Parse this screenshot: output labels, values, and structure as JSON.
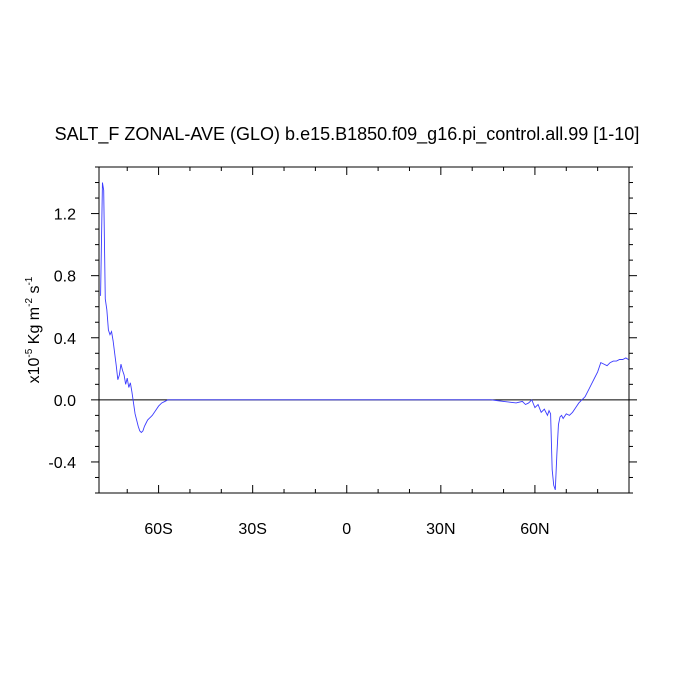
{
  "chart_data": {
    "type": "line",
    "title": "SALT_F ZONAL-AVE (GLO) b.e15.B1850.f09_g16.pi_control.all.99 [1-10]",
    "ylabel": {
      "prefix": "x10",
      "exp": "-5",
      "unit1": " Kg m",
      "exp2": "-2",
      "unit2": " s",
      "exp3": "-1"
    },
    "xlabel": "",
    "xlim": [
      -79,
      90
    ],
    "ylim": [
      -0.6,
      1.5
    ],
    "x_ticks": [
      {
        "value": -60,
        "label": "60S"
      },
      {
        "value": -30,
        "label": "30S"
      },
      {
        "value": 0,
        "label": "0"
      },
      {
        "value": 30,
        "label": "30N"
      },
      {
        "value": 60,
        "label": "60N"
      }
    ],
    "y_ticks": [
      {
        "value": 1.2,
        "label": "1.2"
      },
      {
        "value": 0.8,
        "label": "0.8"
      },
      {
        "value": 0.4,
        "label": "0.4"
      },
      {
        "value": 0.0,
        "label": "0.0"
      },
      {
        "value": -0.4,
        "label": "-0.4"
      }
    ],
    "zero_line": true,
    "series": [
      {
        "color": "#3b3bff",
        "x": [
          -78.5,
          -77.9,
          -77.5,
          -77.0,
          -76.5,
          -76.0,
          -75.5,
          -75.0,
          -74.5,
          -74.0,
          -73.5,
          -73.0,
          -72.5,
          -72.0,
          -71.5,
          -71.0,
          -70.5,
          -70.0,
          -69.5,
          -69.0,
          -68.5,
          -68.0,
          -67.5,
          -67.0,
          -66.5,
          -66.0,
          -65.5,
          -65.0,
          -64.5,
          -64.0,
          -63.5,
          -63.0,
          -62.5,
          -62.0,
          -61.0,
          -60.0,
          -59.0,
          -58.0,
          -57.0,
          -56.0,
          -55.0,
          -54.0,
          -52.0,
          -50.0,
          -45.0,
          -30.0,
          0.0,
          30.0,
          40.0,
          44.0,
          46.0,
          48.0,
          50.0,
          52.0,
          54.0,
          56.0,
          57.0,
          58.0,
          59.0,
          60.0,
          61.0,
          62.0,
          63.0,
          64.0,
          64.5,
          65.0,
          65.5,
          66.0,
          66.5,
          67.0,
          67.5,
          68.0,
          68.5,
          69.0,
          70.0,
          71.0,
          72.0,
          73.0,
          74.0,
          75.0,
          76.0,
          77.0,
          78.0,
          79.0,
          80.0,
          81.0,
          82.0,
          83.0,
          84.0,
          85.0,
          86.0,
          87.0,
          88.0,
          89.0,
          89.8
        ],
        "y": [
          0.67,
          1.4,
          1.35,
          0.65,
          0.58,
          0.45,
          0.42,
          0.44,
          0.38,
          0.3,
          0.22,
          0.13,
          0.16,
          0.23,
          0.19,
          0.16,
          0.1,
          0.14,
          0.08,
          0.11,
          0.05,
          -0.02,
          -0.09,
          -0.13,
          -0.17,
          -0.2,
          -0.21,
          -0.2,
          -0.17,
          -0.15,
          -0.13,
          -0.12,
          -0.11,
          -0.1,
          -0.07,
          -0.04,
          -0.02,
          -0.01,
          0.0,
          0.0,
          0.0,
          0.0,
          0.0,
          0.0,
          0.0,
          0.0,
          0.0,
          0.0,
          0.0,
          0.0,
          0.0,
          -0.005,
          -0.01,
          -0.015,
          -0.02,
          -0.01,
          -0.03,
          -0.02,
          0.0,
          -0.05,
          -0.03,
          -0.08,
          -0.06,
          -0.1,
          -0.07,
          -0.09,
          -0.45,
          -0.55,
          -0.58,
          -0.35,
          -0.16,
          -0.11,
          -0.1,
          -0.12,
          -0.09,
          -0.1,
          -0.08,
          -0.05,
          -0.02,
          0.0,
          0.02,
          0.06,
          0.1,
          0.14,
          0.18,
          0.24,
          0.23,
          0.22,
          0.24,
          0.25,
          0.25,
          0.26,
          0.26,
          0.27,
          0.26
        ]
      }
    ]
  }
}
